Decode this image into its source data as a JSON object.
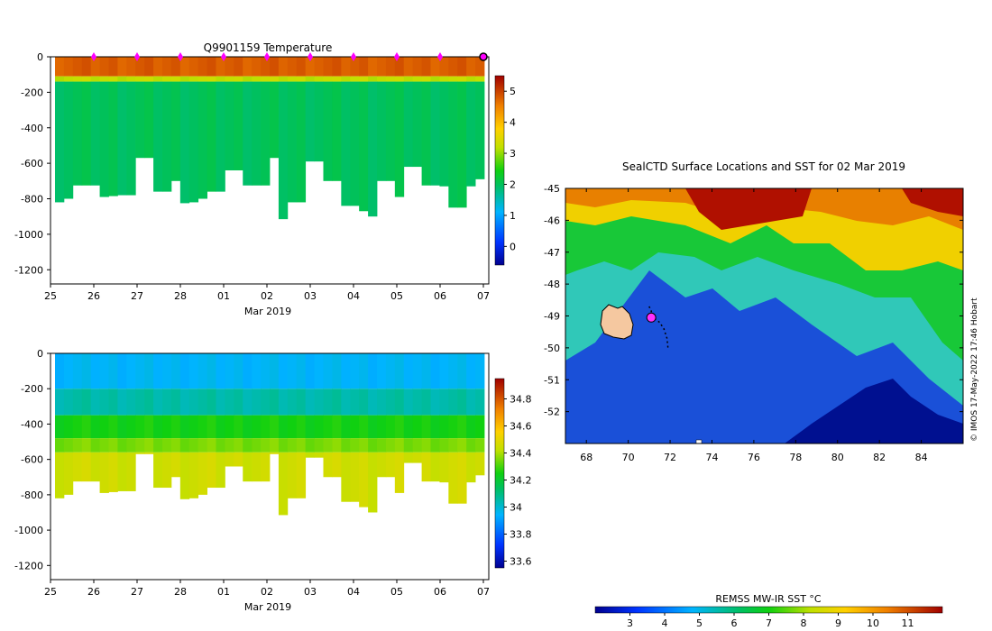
{
  "chart_data": [
    {
      "id": "temp",
      "type": "heatmap",
      "title": "Q9901159  Temperature",
      "xlabel": "Mar 2019",
      "xticks": [
        "25",
        "26",
        "27",
        "28",
        "01",
        "02",
        "03",
        "04",
        "05",
        "06",
        "07"
      ],
      "ylabel": "",
      "yticks": [
        0,
        -200,
        -400,
        -600,
        -800,
        -1000,
        -1200
      ],
      "ylim": [
        -1280,
        0
      ],
      "colorbar": {
        "min": -0.6,
        "max": 5.5,
        "ticks": [
          0,
          1,
          2,
          3,
          4,
          5
        ]
      },
      "profile_depths": [
        820,
        800,
        725,
        725,
        725,
        790,
        785,
        780,
        780,
        570,
        570,
        760,
        760,
        700,
        825,
        820,
        800,
        760,
        760,
        640,
        640,
        725,
        725,
        725,
        570,
        915,
        820,
        820,
        590,
        590,
        700,
        700,
        840,
        840,
        870,
        900,
        700,
        700,
        790,
        620,
        620,
        725,
        725,
        730,
        850,
        850,
        730,
        690
      ],
      "surface_markers": [
        "26",
        "27",
        "28",
        "01",
        "02",
        "03",
        "04",
        "05",
        "06"
      ],
      "layers": [
        {
          "depth_top": 0,
          "depth_bottom": 110,
          "value": 4.8
        },
        {
          "depth_top": 110,
          "depth_bottom": 140,
          "value": 3.2
        },
        {
          "depth_top": 140,
          "depth_bottom": 1300,
          "value": 2.0
        }
      ]
    },
    {
      "id": "salt",
      "type": "heatmap",
      "title": "",
      "xlabel": "Mar 2019",
      "xticks": [
        "25",
        "26",
        "27",
        "28",
        "01",
        "02",
        "03",
        "04",
        "05",
        "06",
        "07"
      ],
      "yticks": [
        0,
        -200,
        -400,
        -600,
        -800,
        -1000,
        -1200
      ],
      "ylim": [
        -1280,
        0
      ],
      "colorbar": {
        "min": 33.55,
        "max": 34.95,
        "ticks": [
          "33.6",
          "33.8",
          "34",
          "34.2",
          "34.4",
          "34.6",
          "34.8"
        ]
      },
      "profile_depths": [
        820,
        800,
        725,
        725,
        725,
        790,
        785,
        780,
        780,
        570,
        570,
        760,
        760,
        700,
        825,
        820,
        800,
        760,
        760,
        640,
        640,
        725,
        725,
        725,
        570,
        915,
        820,
        820,
        590,
        590,
        700,
        700,
        840,
        840,
        870,
        900,
        700,
        700,
        790,
        620,
        620,
        725,
        725,
        730,
        850,
        850,
        730,
        690
      ],
      "layers": [
        {
          "depth_top": 0,
          "depth_bottom": 200,
          "value": 33.95
        },
        {
          "depth_top": 200,
          "depth_bottom": 350,
          "value": 34.05
        },
        {
          "depth_top": 350,
          "depth_bottom": 480,
          "value": 34.25
        },
        {
          "depth_top": 480,
          "depth_bottom": 560,
          "value": 34.35
        },
        {
          "depth_top": 560,
          "depth_bottom": 1300,
          "value": 34.45
        }
      ]
    },
    {
      "id": "map",
      "type": "heatmap",
      "title": "SealCTD Surface Locations and SST for 02 Mar 2019",
      "xticks": [
        68,
        70,
        72,
        74,
        76,
        78,
        80,
        82,
        84
      ],
      "xlim": [
        67,
        86
      ],
      "yticks": [
        -45,
        -46,
        -47,
        -48,
        -49,
        -50,
        -51,
        -52
      ],
      "ylim": [
        -53,
        -45
      ],
      "colorbar": {
        "label": "REMSS MW-IR SST °C",
        "min": 2,
        "max": 12,
        "ticks": [
          3,
          4,
          5,
          6,
          7,
          8,
          9,
          10,
          11
        ]
      },
      "track": [
        [
          71.0,
          -48.7
        ],
        [
          71.1,
          -48.85
        ],
        [
          71.15,
          -49.0
        ],
        [
          71.3,
          -49.1
        ],
        [
          71.5,
          -49.2
        ],
        [
          71.7,
          -49.4
        ],
        [
          71.85,
          -49.7
        ],
        [
          71.9,
          -50.0
        ]
      ],
      "current_position": [
        71.1,
        -49.05
      ],
      "watermark": "© IMOS 17-May-2022 17:46 Hobart"
    }
  ]
}
